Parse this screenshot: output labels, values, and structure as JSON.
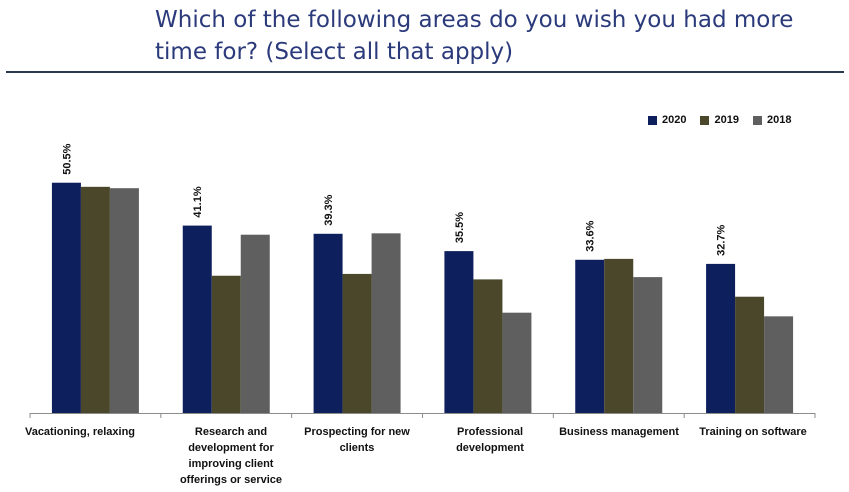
{
  "title": "Which of the following areas do you wish you had more time for? (Select all that apply)",
  "colors": {
    "2020": "#0d1f5c",
    "2019": "#4a472a",
    "2018": "#5f5f5f",
    "axis": "#8c8c8c"
  },
  "chart_data": {
    "type": "bar",
    "title": "Which of the following areas do you wish you had more time for? (Select all that apply)",
    "categories": [
      "Vacationing, relaxing",
      "Research and development for improving client offerings or service",
      "Prospecting for new clients",
      "Professional development",
      "Business management",
      "Training on software"
    ],
    "series": [
      {
        "name": "2020",
        "values": [
          50.5,
          41.1,
          39.3,
          35.5,
          33.6,
          32.7
        ]
      },
      {
        "name": "2019",
        "values": [
          49.6,
          30.1,
          30.5,
          29.3,
          33.8,
          25.5
        ]
      },
      {
        "name": "2018",
        "values": [
          49.3,
          39.1,
          39.4,
          22.0,
          29.8,
          21.2
        ]
      }
    ],
    "data_labels": [
      "50.5%",
      "41.1%",
      "39.3%",
      "35.5%",
      "33.6%",
      "32.7%"
    ],
    "ylim": [
      0,
      55
    ],
    "legend": "top-right",
    "grid": false
  }
}
